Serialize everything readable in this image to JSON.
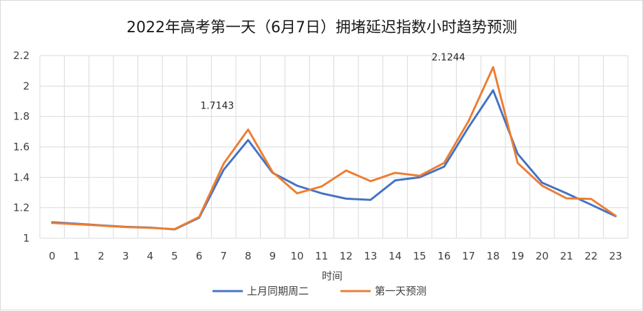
{
  "chart_data": {
    "type": "line",
    "title": "2022年高考第一天（6月7日）拥堵延迟指数小时趋势预测",
    "xlabel": "时间",
    "ylabel": "",
    "x": [
      0,
      1,
      2,
      3,
      4,
      5,
      6,
      7,
      8,
      9,
      10,
      11,
      12,
      13,
      14,
      15,
      16,
      17,
      18,
      19,
      20,
      21,
      22,
      23
    ],
    "ylim": [
      1,
      2.2
    ],
    "yticks": [
      "1",
      "1.2",
      "1.4",
      "1.6",
      "1.8",
      "2",
      "2.2"
    ],
    "ytick_values": [
      1,
      1.2,
      1.4,
      1.6,
      1.8,
      2,
      2.2
    ],
    "grid": true,
    "legend": "bottom",
    "series": [
      {
        "name": "上月同期周二",
        "color": "#4472c4",
        "values": [
          1.105,
          1.095,
          1.085,
          1.075,
          1.07,
          1.058,
          1.135,
          1.45,
          1.645,
          1.43,
          1.345,
          1.295,
          1.26,
          1.252,
          1.38,
          1.4,
          1.47,
          1.73,
          1.972,
          1.555,
          1.365,
          1.295,
          1.22,
          1.145
        ]
      },
      {
        "name": "第一天预测",
        "color": "#ed7d31",
        "values": [
          1.1,
          1.092,
          1.083,
          1.073,
          1.068,
          1.06,
          1.14,
          1.49,
          1.7143,
          1.435,
          1.295,
          1.34,
          1.445,
          1.375,
          1.43,
          1.41,
          1.495,
          1.77,
          2.1244,
          1.495,
          1.345,
          1.262,
          1.258,
          1.148
        ]
      }
    ],
    "annotations": [
      {
        "text": "1.7143",
        "x": 8,
        "series": 1
      },
      {
        "text": "2.1244",
        "x": 18,
        "series": 1
      }
    ]
  }
}
